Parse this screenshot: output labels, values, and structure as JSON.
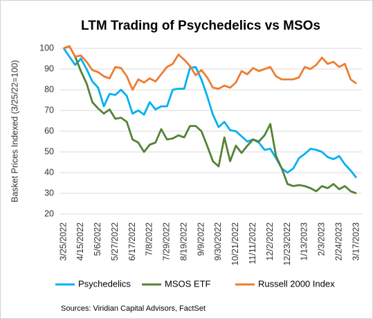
{
  "chart_data": {
    "type": "line",
    "title": "LTM Trading of Psychedelics vs MSOs",
    "y_label": "Basket Prices Indexed (3/25/22=100)",
    "source": "Sources: Viridian Capital Advisors, FactSet",
    "categories": [
      "3/25/2022",
      null,
      null,
      "4/15/2022",
      null,
      null,
      "5/6/2022",
      null,
      null,
      "5/27/2022",
      null,
      null,
      "6/17/2022",
      null,
      null,
      "7/8/2022",
      null,
      null,
      "7/29/2022",
      null,
      null,
      "8/19/2022",
      null,
      null,
      "9/9/2022",
      null,
      null,
      "9/30/2022",
      null,
      null,
      "10/21/2022",
      null,
      null,
      "11/11/2022",
      null,
      null,
      "12/2/2022",
      null,
      null,
      "12/23/2022",
      null,
      null,
      "1/13/2023",
      null,
      null,
      "2/3/2023",
      null,
      null,
      "2/24/2023",
      null,
      null,
      "3/17/2023"
    ],
    "series": [
      {
        "name": "Psychedelics",
        "color": "#00b0f0",
        "values": [
          100,
          96,
          92,
          95,
          90,
          84,
          81,
          72,
          78,
          77.5,
          80,
          77,
          68.5,
          70,
          68,
          74,
          70.5,
          72,
          72,
          80,
          80.5,
          80.5,
          90.5,
          91,
          85,
          77,
          68,
          62,
          64.5,
          60.5,
          60,
          57.5,
          55,
          56,
          54.5,
          51,
          51.5,
          47,
          42,
          40,
          42,
          47,
          49,
          51.5,
          51,
          50,
          47.5,
          46.5,
          48,
          44,
          41,
          37.5
        ]
      },
      {
        "name": "MSOS ETF",
        "color": "#548235",
        "values": [
          100,
          101,
          96,
          89,
          83,
          74,
          71,
          68.5,
          70.5,
          66,
          66.5,
          64.5,
          56,
          54.5,
          50,
          53.5,
          54.5,
          61,
          56,
          56.5,
          58,
          57,
          62.5,
          62.5,
          60,
          53,
          45.5,
          43,
          57,
          45.5,
          53,
          49.5,
          53,
          56,
          55,
          58,
          63.5,
          48,
          42,
          34.5,
          33.5,
          34,
          33.5,
          32.5,
          31,
          33.5,
          32.5,
          34.5,
          32,
          33.5,
          31,
          30
        ]
      },
      {
        "name": "Russell 2000 Index",
        "color": "#ed7d31",
        "values": [
          100,
          101,
          96,
          96.5,
          93.5,
          89.5,
          88.5,
          86.5,
          85.5,
          91,
          90.5,
          86.5,
          80,
          85,
          83.5,
          85.5,
          84,
          87.5,
          91,
          92.5,
          97,
          94.5,
          91.5,
          87,
          89.5,
          86,
          81,
          80.5,
          82,
          81,
          83.5,
          89,
          87.5,
          90.5,
          89,
          90,
          91,
          86.5,
          85,
          85,
          85,
          86,
          91,
          90,
          92,
          95.5,
          92.5,
          93.5,
          91,
          92.5,
          85,
          83
        ]
      }
    ],
    "ylim": [
      20,
      100
    ],
    "yticks": [
      20,
      30,
      40,
      50,
      60,
      70,
      80,
      90,
      100
    ],
    "grid": true,
    "legend": "bottom"
  }
}
